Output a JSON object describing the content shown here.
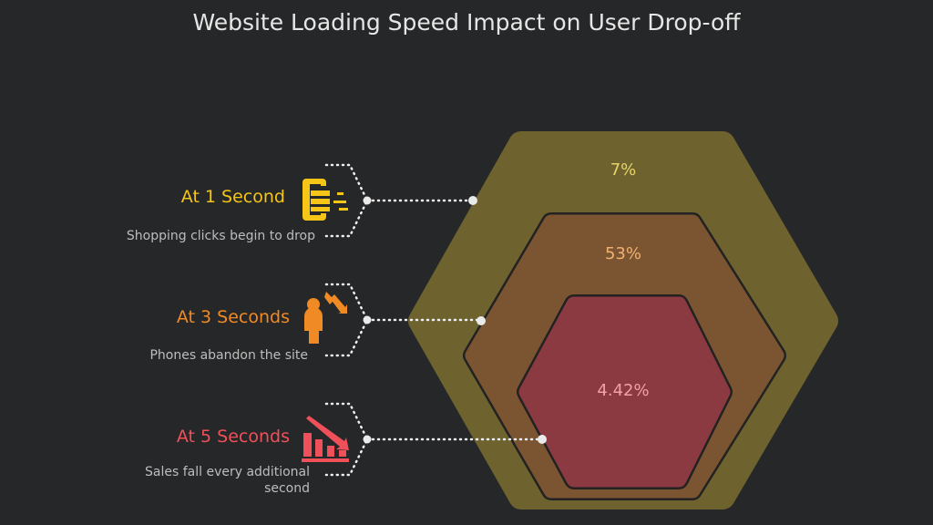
{
  "title": "Website Loading Speed Impact on User Drop-off",
  "items": [
    {
      "label": "At 1 Second",
      "description": "Shopping clicks begin to drop",
      "value": "7%",
      "icon": "document-lines-icon",
      "color": "#f5c518"
    },
    {
      "label": "At 3 Seconds",
      "description": "Phones abandon the site",
      "value": "53%",
      "icon": "person-down-arrow-icon",
      "color": "#f08a24"
    },
    {
      "label": "At 5 Seconds",
      "description": "Sales fall every additional second",
      "value": "4.42%",
      "icon": "bar-chart-down-icon",
      "color": "#f0505a"
    }
  ],
  "colors": {
    "background": "#262728",
    "outer": "#6e622e",
    "middle": "#7b5532",
    "inner": "#8b3a41"
  }
}
